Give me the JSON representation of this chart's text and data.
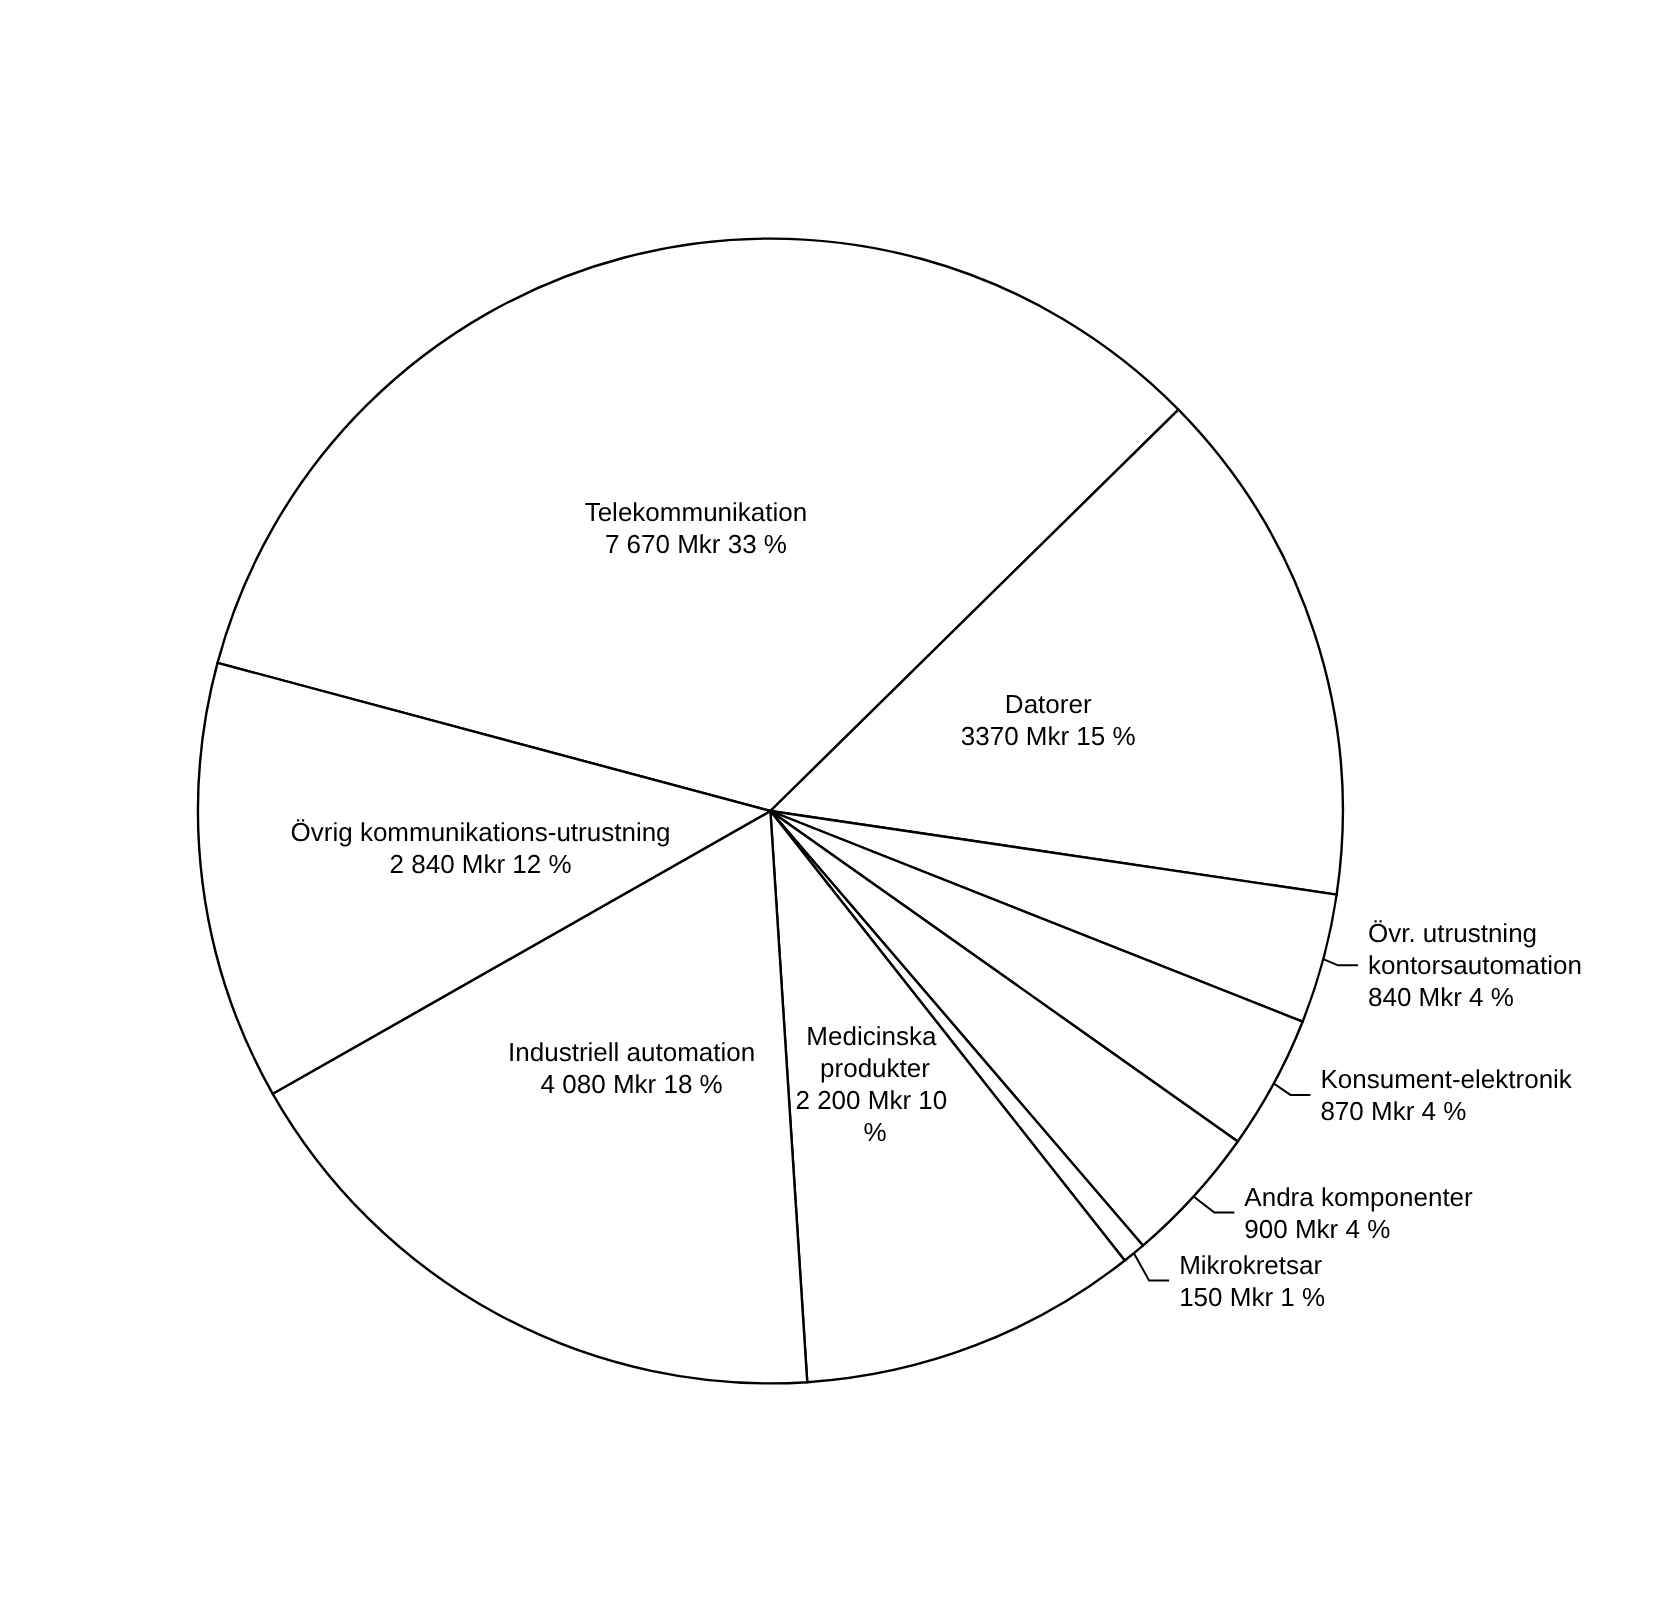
{
  "chart_data": {
    "type": "pie",
    "categories": [
      "Telekommunikation",
      "Datorer",
      "Övr. utrustning kontorsautomation",
      "Konsument-elektronik",
      "Andra komponenter",
      "Mikrokretsar",
      "Medicinska produkter",
      "Industriell automation",
      "Övrig kommunikations-utrustning"
    ],
    "values": [
      7670,
      3370,
      840,
      870,
      900,
      150,
      2200,
      4080,
      2840
    ],
    "value_labels": [
      "7 670 Mkr 33 %",
      "3370 Mkr 15 %",
      "840 Mkr 4 %",
      "870 Mkr 4 %",
      "900 Mkr 4 %",
      "150 Mkr 1 %",
      "2 200 Mkr 10 %",
      "4 080 Mkr 18 %",
      "2 840 Mkr 12 %"
    ],
    "colors": [
      "#ffffff",
      "#ffffff",
      "#ffffff",
      "#ffffff",
      "#ffffff",
      "#ffffff",
      "#ffffff",
      "#ffffff",
      "#ffffff"
    ],
    "legend": false
  }
}
